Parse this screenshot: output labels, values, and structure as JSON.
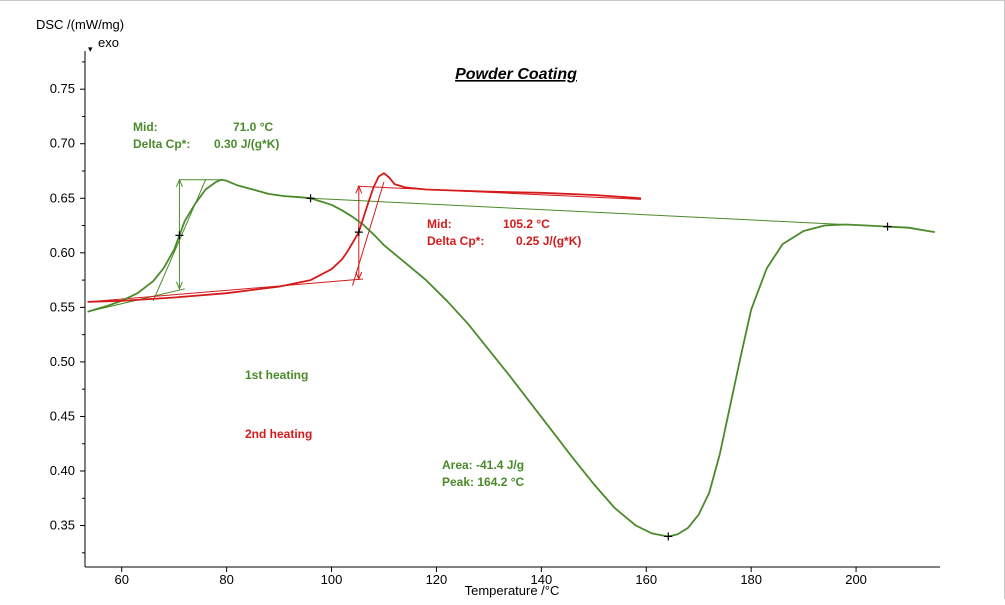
{
  "chart_data": {
    "type": "line",
    "title": "Powder Coating",
    "xlabel": "Temperature /°C",
    "ylabel": "DSC /(mW/mg)",
    "ylabel_sub": "exo",
    "xlim": [
      53,
      216
    ],
    "ylim": [
      0.312,
      0.785
    ],
    "x_ticks": [
      60,
      80,
      100,
      120,
      140,
      160,
      180,
      200
    ],
    "y_ticks": [
      0.35,
      0.4,
      0.45,
      0.5,
      0.55,
      0.6,
      0.65,
      0.7,
      0.75
    ],
    "grid": false,
    "colors": {
      "first": "#4b8a2a",
      "second": "#d41a1a"
    },
    "series": [
      {
        "name": "1st heating",
        "color": "#4b8a2a",
        "x": [
          53.5,
          57,
          60,
          63,
          66,
          68,
          70,
          71,
          72,
          74,
          76,
          78,
          79,
          80,
          82,
          85,
          88,
          91,
          94,
          96,
          98,
          100,
          102,
          104,
          106,
          108,
          110,
          114,
          118,
          122,
          126,
          130,
          134,
          138,
          142,
          146,
          150,
          154,
          158,
          161,
          163,
          164.2,
          166,
          168,
          170,
          172,
          174,
          176,
          178,
          180,
          183,
          186,
          190,
          194,
          198,
          202,
          206,
          210,
          215
        ],
        "y": [
          0.546,
          0.551,
          0.556,
          0.563,
          0.574,
          0.586,
          0.603,
          0.616,
          0.629,
          0.645,
          0.658,
          0.665,
          0.667,
          0.666,
          0.662,
          0.658,
          0.654,
          0.652,
          0.651,
          0.65,
          0.647,
          0.644,
          0.639,
          0.633,
          0.626,
          0.617,
          0.607,
          0.591,
          0.575,
          0.556,
          0.535,
          0.511,
          0.487,
          0.462,
          0.437,
          0.412,
          0.388,
          0.366,
          0.35,
          0.343,
          0.341,
          0.34,
          0.342,
          0.348,
          0.36,
          0.38,
          0.415,
          0.46,
          0.505,
          0.548,
          0.586,
          0.608,
          0.62,
          0.625,
          0.626,
          0.625,
          0.624,
          0.623,
          0.619
        ]
      },
      {
        "name": "2nd heating",
        "color": "#d41a1a",
        "x": [
          53.5,
          60,
          70,
          80,
          90,
          96,
          100,
          102,
          103,
          104,
          105.2,
          106,
          107,
          108,
          109,
          110,
          111,
          112,
          114,
          118,
          124,
          130,
          140,
          150,
          159
        ],
        "y": [
          0.555,
          0.556,
          0.559,
          0.563,
          0.569,
          0.575,
          0.585,
          0.594,
          0.601,
          0.609,
          0.619,
          0.631,
          0.646,
          0.66,
          0.67,
          0.673,
          0.669,
          0.663,
          0.66,
          0.658,
          0.657,
          0.656,
          0.655,
          0.653,
          0.65
        ]
      }
    ],
    "aux_lines": [
      {
        "color": "#4b8a2a",
        "x": [
          53.5,
          72
        ],
        "y": [
          0.546,
          0.567
        ]
      },
      {
        "color": "#4b8a2a",
        "x": [
          66,
          76
        ],
        "y": [
          0.556,
          0.667
        ]
      },
      {
        "color": "#4b8a2a",
        "x": [
          71,
          79
        ],
        "y": [
          0.667,
          0.667
        ]
      },
      {
        "color": "#4b8a2a",
        "x": [
          96,
          206
        ],
        "y": [
          0.65,
          0.624
        ]
      },
      {
        "color": "#d41a1a",
        "x": [
          53.5,
          106
        ],
        "y": [
          0.555,
          0.576
        ]
      },
      {
        "color": "#d41a1a",
        "x": [
          104,
          110
        ],
        "y": [
          0.57,
          0.665
        ]
      },
      {
        "color": "#d41a1a",
        "x": [
          105,
          159
        ],
        "y": [
          0.661,
          0.649
        ]
      }
    ],
    "arrows": [
      {
        "color": "#4b8a2a",
        "x": 71,
        "y1": 0.567,
        "y2": 0.667
      },
      {
        "color": "#d41a1a",
        "x": 105.2,
        "y1": 0.576,
        "y2": 0.661
      }
    ],
    "markers": [
      {
        "color": "#4b8a2a",
        "x": 71,
        "y": 0.616
      },
      {
        "color": "#4b8a2a",
        "x": 96,
        "y": 0.65
      },
      {
        "color": "#4b8a2a",
        "x": 164.2,
        "y": 0.34
      },
      {
        "color": "#4b8a2a",
        "x": 206,
        "y": 0.624
      },
      {
        "color": "#d41a1a",
        "x": 105.2,
        "y": 0.619
      }
    ],
    "annotations": {
      "mid1_label": "Mid:",
      "mid1_value": "71.0 °C",
      "cp1_label": "Delta Cp*:",
      "cp1_value": "0.30 J/(g*K)",
      "mid2_label": "Mid:",
      "mid2_value": "105.2 °C",
      "cp2_label": "Delta Cp*:",
      "cp2_value": "0.25 J/(g*K)",
      "legend1": "1st heating",
      "legend2": "2nd heating",
      "area": "Area:   -41.4 J/g",
      "peak": "Peak:  164.2 °C"
    }
  }
}
